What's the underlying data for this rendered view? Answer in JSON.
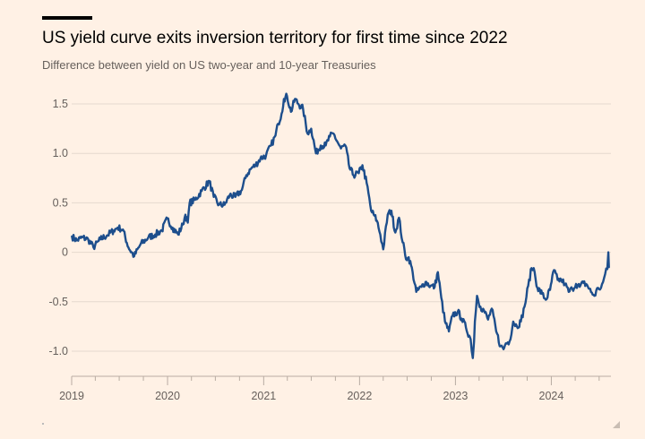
{
  "header": {
    "title": "US yield curve exits inversion territory for first time since 2022",
    "subtitle": "Difference between yield on US two-year and 10-year Treasuries"
  },
  "colors": {
    "background": "#fff1e5",
    "line": "#1d4e8c",
    "grid": "#e6d9ce",
    "tick_text": "#66605c"
  },
  "chart_data": {
    "type": "line",
    "title": "US yield curve exits inversion territory for first time since 2022",
    "subtitle": "Difference between yield on US two-year and 10-year Treasuries",
    "xlabel": "",
    "ylabel": "",
    "ylim": [
      -1.2,
      1.6
    ],
    "xlim": [
      "2019-01-01",
      "2024-08-15"
    ],
    "grid": "horizontal",
    "y_ticks": [
      {
        "value": 1.5,
        "label": "1.5"
      },
      {
        "value": 1.0,
        "label": "1.0"
      },
      {
        "value": 0.5,
        "label": "0.5"
      },
      {
        "value": 0,
        "label": "0"
      },
      {
        "value": -0.5,
        "label": "-0.5"
      },
      {
        "value": -1.0,
        "label": "-1.0"
      }
    ],
    "x_ticks": [
      {
        "value": "2019-01-01",
        "label": "2019"
      },
      {
        "value": "2020-01-01",
        "label": "2020"
      },
      {
        "value": "2021-01-01",
        "label": "2021"
      },
      {
        "value": "2022-01-01",
        "label": "2022"
      },
      {
        "value": "2023-01-01",
        "label": "2023"
      },
      {
        "value": "2024-01-01",
        "label": "2024"
      }
    ],
    "series": [
      {
        "x": [
          "2019-01-02",
          "2019-01-20",
          "2019-02-10",
          "2019-03-05",
          "2019-03-25",
          "2019-04-20",
          "2019-05-15",
          "2019-06-10",
          "2019-06-25",
          "2019-07-15",
          "2019-08-05",
          "2019-08-27",
          "2019-09-20",
          "2019-10-20",
          "2019-11-15",
          "2019-12-10",
          "2019-12-31",
          "2020-01-20",
          "2020-02-10",
          "2020-02-28",
          "2020-03-09",
          "2020-03-18",
          "2020-03-25",
          "2020-04-15",
          "2020-05-10",
          "2020-06-08",
          "2020-06-25",
          "2020-07-15",
          "2020-08-05",
          "2020-08-25",
          "2020-09-15",
          "2020-10-10",
          "2020-10-27",
          "2020-11-15",
          "2020-12-01",
          "2020-12-20",
          "2021-01-10",
          "2021-01-29",
          "2021-02-15",
          "2021-02-25",
          "2021-03-10",
          "2021-03-19",
          "2021-03-31",
          "2021-04-15",
          "2021-04-30",
          "2021-05-13",
          "2021-05-31",
          "2021-06-17",
          "2021-07-01",
          "2021-07-19",
          "2021-08-06",
          "2021-08-25",
          "2021-09-10",
          "2021-09-24",
          "2021-10-08",
          "2021-10-22",
          "2021-11-08",
          "2021-11-24",
          "2021-12-09",
          "2021-12-29",
          "2022-01-12",
          "2022-01-28",
          "2022-02-14",
          "2022-02-24",
          "2022-03-08",
          "2022-03-21",
          "2022-04-01",
          "2022-04-18",
          "2022-05-02",
          "2022-05-17",
          "2022-05-31",
          "2022-06-14",
          "2022-06-30",
          "2022-07-07",
          "2022-07-22",
          "2022-08-05",
          "2022-08-25",
          "2022-09-09",
          "2022-09-28",
          "2022-10-14",
          "2022-10-26",
          "2022-11-08",
          "2022-11-22",
          "2022-12-07",
          "2022-12-21",
          "2023-01-10",
          "2023-01-25",
          "2023-02-10",
          "2023-02-28",
          "2023-03-08",
          "2023-03-13",
          "2023-03-16",
          "2023-03-24",
          "2023-04-06",
          "2023-04-20",
          "2023-05-05",
          "2023-05-19",
          "2023-06-05",
          "2023-06-22",
          "2023-07-03",
          "2023-07-12",
          "2023-07-26",
          "2023-08-09",
          "2023-08-23",
          "2023-09-07",
          "2023-09-21",
          "2023-10-05",
          "2023-10-18",
          "2023-10-26",
          "2023-11-09",
          "2023-11-27",
          "2023-12-11",
          "2023-12-27",
          "2024-01-11",
          "2024-01-25",
          "2024-02-08",
          "2024-02-22",
          "2024-03-07",
          "2024-03-21",
          "2024-04-04",
          "2024-04-18",
          "2024-05-02",
          "2024-05-16",
          "2024-05-31",
          "2024-06-13",
          "2024-06-27",
          "2024-07-08",
          "2024-07-16",
          "2024-07-24",
          "2024-08-01",
          "2024-08-05",
          "2024-08-07"
        ],
        "values": [
          0.16,
          0.12,
          0.15,
          0.13,
          0.05,
          0.13,
          0.17,
          0.22,
          0.25,
          0.23,
          0.05,
          -0.04,
          0.08,
          0.15,
          0.18,
          0.22,
          0.34,
          0.25,
          0.18,
          0.28,
          0.38,
          0.3,
          0.5,
          0.53,
          0.62,
          0.72,
          0.56,
          0.48,
          0.48,
          0.58,
          0.56,
          0.63,
          0.78,
          0.85,
          0.88,
          0.95,
          0.98,
          1.08,
          1.18,
          1.3,
          1.4,
          1.55,
          1.58,
          1.42,
          1.55,
          1.5,
          1.45,
          1.2,
          1.25,
          1.0,
          1.08,
          1.08,
          1.17,
          1.2,
          1.12,
          1.05,
          1.08,
          0.85,
          0.78,
          0.8,
          0.88,
          0.7,
          0.42,
          0.38,
          0.32,
          0.18,
          0.03,
          0.38,
          0.42,
          0.2,
          0.35,
          0.1,
          -0.08,
          -0.05,
          -0.2,
          -0.4,
          -0.35,
          -0.3,
          -0.34,
          -0.35,
          -0.2,
          -0.46,
          -0.7,
          -0.8,
          -0.64,
          -0.6,
          -0.67,
          -0.76,
          -0.88,
          -1.07,
          -0.9,
          -0.7,
          -0.44,
          -0.55,
          -0.59,
          -0.68,
          -0.57,
          -0.8,
          -0.95,
          -0.98,
          -0.92,
          -0.9,
          -0.7,
          -0.75,
          -0.7,
          -0.55,
          -0.34,
          -0.16,
          -0.16,
          -0.36,
          -0.42,
          -0.48,
          -0.38,
          -0.18,
          -0.28,
          -0.28,
          -0.32,
          -0.4,
          -0.37,
          -0.32,
          -0.35,
          -0.31,
          -0.33,
          -0.4,
          -0.44,
          -0.36,
          -0.36,
          -0.3,
          -0.22,
          -0.17,
          0.0,
          -0.15
        ]
      }
    ]
  }
}
